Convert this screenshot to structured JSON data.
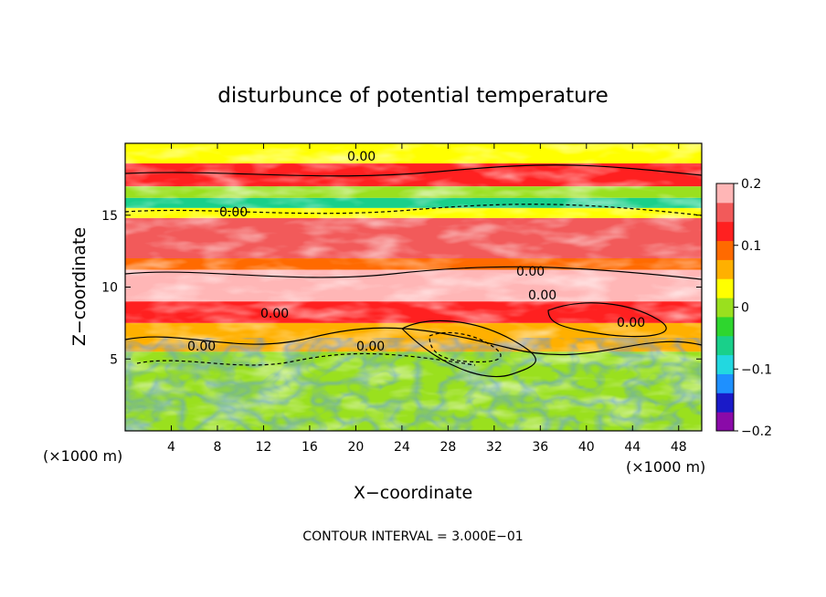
{
  "chart_data": {
    "type": "heatmap",
    "title": "disturbunce of potential temperature",
    "xlabel": "X−coordinate",
    "ylabel": "Z−coordinate",
    "x_unit": "(×1000 m)",
    "y_unit": "(×1000 m)",
    "x_ticks": [
      4,
      8,
      12,
      16,
      20,
      24,
      28,
      32,
      36,
      40,
      44,
      48
    ],
    "y_ticks": [
      5,
      10,
      15
    ],
    "xlim": [
      0,
      50
    ],
    "ylim": [
      0,
      20
    ],
    "colorbar": {
      "ticks": [
        "0.2",
        "0.1",
        "0",
        "−0.1",
        "−0.2"
      ],
      "range": [
        -0.2,
        0.2
      ],
      "colors": [
        "#8a0aa8",
        "#1a1ac8",
        "#1e90ff",
        "#22d8e0",
        "#19d08a",
        "#2ed62e",
        "#9ae01e",
        "#ffff00",
        "#ffb000",
        "#ff6a00",
        "#ff2020",
        "#f25a5a",
        "#ffb6b6"
      ]
    },
    "contour_label": "0.00",
    "contour_interval_text": "CONTOUR INTERVAL = 3.000E−01",
    "field_bands": [
      {
        "z": [
          18.6,
          20.0
        ],
        "value": 0.03
      },
      {
        "z": [
          17.0,
          18.6
        ],
        "value": 0.13
      },
      {
        "z": [
          16.2,
          17.0
        ],
        "value": 0.0
      },
      {
        "z": [
          15.5,
          16.2
        ],
        "value": -0.06
      },
      {
        "z": [
          14.8,
          15.5
        ],
        "value": 0.02
      },
      {
        "z": [
          12.0,
          14.8
        ],
        "value": 0.15
      },
      {
        "z": [
          11.2,
          12.0
        ],
        "value": 0.09
      },
      {
        "z": [
          9.0,
          11.2
        ],
        "value": 0.17
      },
      {
        "z": [
          7.5,
          9.0
        ],
        "value": 0.11
      },
      {
        "z": [
          5.5,
          7.5
        ],
        "value": 0.05
      },
      {
        "z": [
          0.0,
          5.5
        ],
        "value": 0.0
      }
    ]
  }
}
